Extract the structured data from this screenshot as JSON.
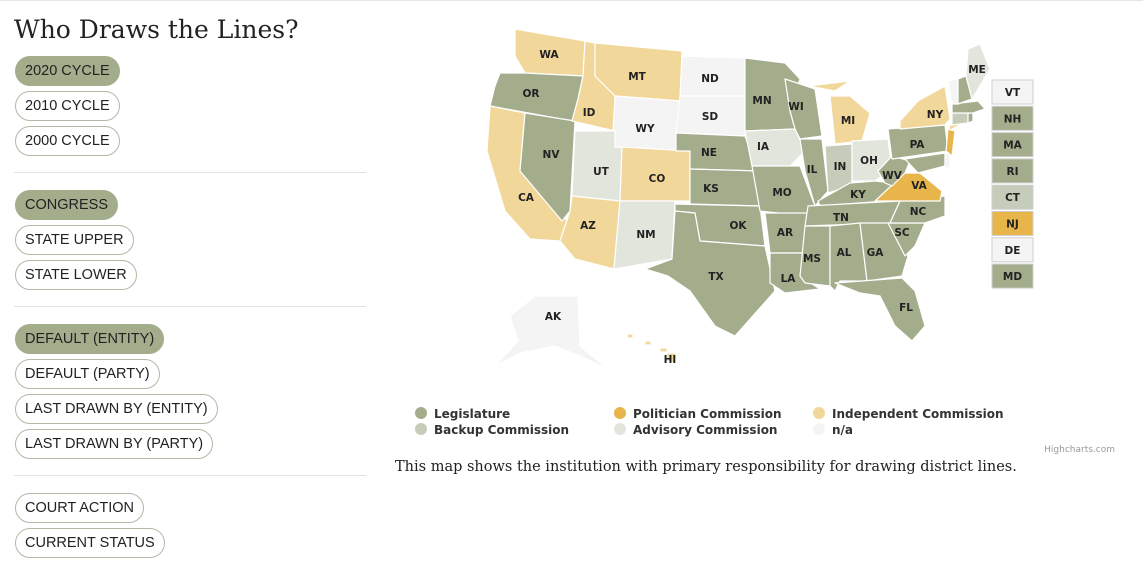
{
  "title": "Who Draws the Lines?",
  "cycle_buttons": [
    {
      "label": "2020 CYCLE",
      "active": true
    },
    {
      "label": "2010 CYCLE",
      "active": false
    },
    {
      "label": "2000 CYCLE",
      "active": false
    }
  ],
  "chamber_buttons": [
    {
      "label": "CONGRESS",
      "active": true
    },
    {
      "label": "STATE UPPER",
      "active": false
    },
    {
      "label": "STATE LOWER",
      "active": false
    }
  ],
  "view_buttons": [
    {
      "label": "DEFAULT (ENTITY)",
      "active": true
    },
    {
      "label": "DEFAULT (PARTY)",
      "active": false
    },
    {
      "label": "LAST DRAWN BY (ENTITY)",
      "active": false
    },
    {
      "label": "LAST DRAWN BY (PARTY)",
      "active": false
    }
  ],
  "status_buttons": [
    {
      "label": "COURT ACTION",
      "active": false
    },
    {
      "label": "CURRENT STATUS",
      "active": false
    }
  ],
  "legend": [
    {
      "key": "legislature",
      "label": "Legislature",
      "color": "#a3ad8c"
    },
    {
      "key": "backup",
      "label": "Backup Commission",
      "color": "#c6ccba"
    },
    {
      "key": "politician",
      "label": "Politician Commission",
      "color": "#e8b54a"
    },
    {
      "key": "advisory",
      "label": "Advisory Commission",
      "color": "#e2e5dc"
    },
    {
      "key": "independent",
      "label": "Independent Commission",
      "color": "#f2d79a"
    },
    {
      "key": "na",
      "label": "n/a",
      "color": "#f4f4f4"
    }
  ],
  "states": {
    "WA": "independent",
    "OR": "legislature",
    "CA": "independent",
    "NV": "legislature",
    "ID": "independent",
    "MT": "independent",
    "WY": "na",
    "UT": "advisory",
    "AZ": "independent",
    "CO": "independent",
    "NM": "advisory",
    "ND": "na",
    "SD": "na",
    "NE": "legislature",
    "KS": "legislature",
    "OK": "legislature",
    "TX": "legislature",
    "MN": "legislature",
    "IA": "advisory",
    "MO": "legislature",
    "AR": "legislature",
    "LA": "legislature",
    "WI": "legislature",
    "IL": "legislature",
    "MI": "independent",
    "IN": "backup",
    "OH": "advisory",
    "KY": "legislature",
    "TN": "legislature",
    "MS": "legislature",
    "AL": "legislature",
    "GA": "legislature",
    "FL": "legislature",
    "SC": "legislature",
    "NC": "legislature",
    "VA": "politician",
    "WV": "legislature",
    "PA": "legislature",
    "NY": "independent",
    "ME": "advisory",
    "VT": "na",
    "NH": "legislature",
    "MA": "legislature",
    "RI": "legislature",
    "CT": "backup",
    "NJ": "politician",
    "DE": "na",
    "MD": "legislature",
    "AK": "na",
    "HI": "independent"
  },
  "small_state_boxes": [
    "VT",
    "NH",
    "MA",
    "RI",
    "CT",
    "NJ",
    "DE",
    "MD"
  ],
  "credits": "Highcharts.com",
  "caption": "This map shows the institution with primary responsibility for drawing district lines."
}
